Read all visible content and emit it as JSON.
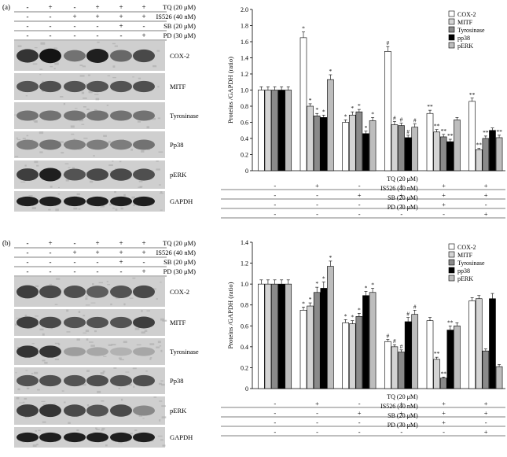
{
  "colors": {
    "cox2": "#ffffff",
    "mitf": "#d4d4d4",
    "tyrosinase": "#8a8a8a",
    "pp38": "#000000",
    "perk": "#bdbdbd",
    "blot_light": "#c9c9c9"
  },
  "blot_rows": [
    "TQ (20 μM)",
    "IS526 (40 nM)",
    "SB (20 μM)",
    "PD (30 μM)"
  ],
  "treatments": [
    [
      "-",
      "+",
      "-",
      "+",
      "+",
      "+"
    ],
    [
      "-",
      "-",
      "+",
      "+",
      "+",
      "+"
    ],
    [
      "-",
      "-",
      "-",
      "-",
      "+",
      "-"
    ],
    [
      "-",
      "-",
      "-",
      "-",
      "-",
      "+"
    ]
  ],
  "bands": [
    "COX-2",
    "MITF",
    "Tyrosinase",
    "Pp38",
    "pERK",
    "GAPDH"
  ],
  "chart_data": [
    {
      "panel_label": "(a)",
      "type": "bar",
      "ylabel": "Proteins /GAPDH (ratio)",
      "ylim": [
        0,
        2.0
      ],
      "yticks": [
        "0",
        "0.2",
        "0.4",
        "0.6",
        "0.8",
        "1.0",
        "1.2",
        "1.4",
        "1.6",
        "1.8",
        "2.0"
      ],
      "legend_position": "top-right",
      "series": [
        {
          "name": "COX-2",
          "color": "#ffffff",
          "values": [
            1.0,
            1.65,
            0.6,
            1.48,
            0.71,
            0.86
          ],
          "errors": [
            0.04,
            0.07,
            0.03,
            0.06,
            0.04,
            0.04
          ],
          "labels": [
            "",
            "*",
            "*",
            "#",
            "**",
            "**"
          ]
        },
        {
          "name": "MITF",
          "color": "#d4d4d4",
          "values": [
            1.0,
            0.8,
            0.69,
            0.57,
            0.48,
            0.26
          ],
          "errors": [
            0.04,
            0.03,
            0.04,
            0.04,
            0.03,
            0.02
          ],
          "labels": [
            "",
            "*",
            "*",
            "#",
            "**",
            "**"
          ]
        },
        {
          "name": "Tyrosinase",
          "color": "#8a8a8a",
          "values": [
            1.0,
            0.68,
            0.73,
            0.56,
            0.42,
            0.4
          ],
          "errors": [
            0.04,
            0.03,
            0.03,
            0.03,
            0.03,
            0.03
          ],
          "labels": [
            "",
            "*",
            "*",
            "#",
            "**",
            "**"
          ]
        },
        {
          "name": "pp38",
          "color": "#000000",
          "values": [
            1.0,
            0.66,
            0.46,
            0.41,
            0.36,
            0.5
          ],
          "errors": [
            0.04,
            0.03,
            0.03,
            0.03,
            0.03,
            0.03
          ],
          "labels": [
            "",
            "*",
            "*",
            "#",
            "**",
            ""
          ]
        },
        {
          "name": "pERK",
          "color": "#bdbdbd",
          "values": [
            1.0,
            1.13,
            0.62,
            0.54,
            0.63,
            0.41
          ],
          "errors": [
            0.04,
            0.06,
            0.04,
            0.04,
            0.03,
            0.03
          ],
          "labels": [
            "",
            "*",
            "*",
            "#",
            "",
            "**"
          ]
        }
      ]
    },
    {
      "panel_label": "(b)",
      "type": "bar",
      "ylabel": "Proteins /GAPDH (ratio)",
      "ylim": [
        0,
        1.4
      ],
      "yticks": [
        "0",
        "0.2",
        "0.4",
        "0.6",
        "0.8",
        "1.0",
        "1.2",
        "1.4"
      ],
      "legend_position": "top-right",
      "series": [
        {
          "name": "COX-2",
          "color": "#ffffff",
          "values": [
            1.0,
            0.75,
            0.63,
            0.45,
            0.65,
            0.84
          ],
          "errors": [
            0.04,
            0.03,
            0.03,
            0.02,
            0.03,
            0.03
          ],
          "labels": [
            "",
            "*",
            "*",
            "#",
            "",
            ""
          ]
        },
        {
          "name": "MITF",
          "color": "#d4d4d4",
          "values": [
            1.0,
            0.79,
            0.62,
            0.4,
            0.28,
            0.86
          ],
          "errors": [
            0.04,
            0.03,
            0.03,
            0.02,
            0.02,
            0.03
          ],
          "labels": [
            "",
            "*",
            "*",
            "#",
            "**",
            ""
          ]
        },
        {
          "name": "Tyrosinase",
          "color": "#8a8a8a",
          "values": [
            1.0,
            0.92,
            0.69,
            0.35,
            0.1,
            0.36
          ],
          "errors": [
            0.04,
            0.05,
            0.03,
            0.02,
            0.01,
            0.02
          ],
          "labels": [
            "",
            "*",
            "*",
            "#",
            "**",
            ""
          ]
        },
        {
          "name": "pp38",
          "color": "#000000",
          "values": [
            1.0,
            0.96,
            0.89,
            0.64,
            0.56,
            0.86
          ],
          "errors": [
            0.04,
            0.06,
            0.04,
            0.04,
            0.04,
            0.05
          ],
          "labels": [
            "",
            "*",
            "*",
            "#",
            "**",
            ""
          ]
        },
        {
          "name": "pERK",
          "color": "#bdbdbd",
          "values": [
            1.0,
            1.17,
            0.92,
            0.71,
            0.6,
            0.21
          ],
          "errors": [
            0.04,
            0.05,
            0.04,
            0.04,
            0.03,
            0.02
          ],
          "labels": [
            "",
            "*",
            "*",
            "#",
            "",
            ""
          ]
        }
      ]
    }
  ]
}
